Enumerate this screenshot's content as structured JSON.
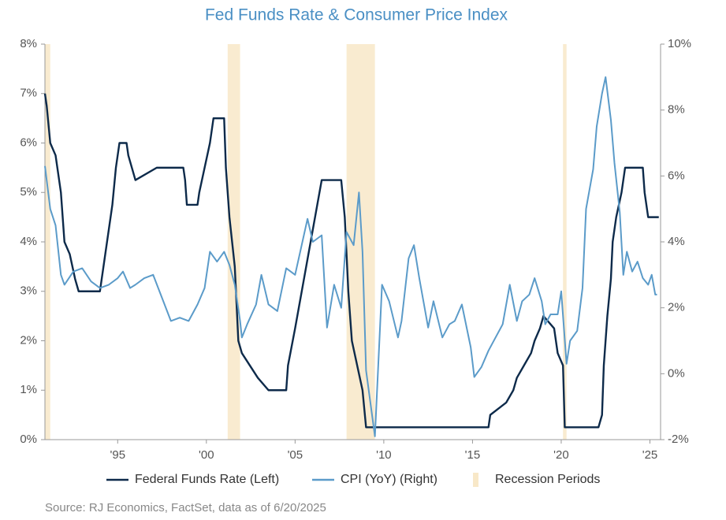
{
  "chart_data": {
    "type": "line",
    "title": "Fed Funds Rate & Consumer Price Index",
    "source": "Source: RJ Economics, FactSet, data as of 6/20/2025",
    "xlim": [
      1990.9,
      2025.6
    ],
    "xticks": [
      {
        "value": 1995,
        "label": "'95"
      },
      {
        "value": 2000,
        "label": "'00"
      },
      {
        "value": 2005,
        "label": "'05"
      },
      {
        "value": 2010,
        "label": "'10"
      },
      {
        "value": 2015,
        "label": "'15"
      },
      {
        "value": 2020,
        "label": "'20"
      },
      {
        "value": 2025,
        "label": "'25"
      }
    ],
    "ylim": [
      0,
      8
    ],
    "yticks": [
      {
        "value": 0,
        "label": "0%"
      },
      {
        "value": 1,
        "label": "1%"
      },
      {
        "value": 2,
        "label": "2%"
      },
      {
        "value": 3,
        "label": "3%"
      },
      {
        "value": 4,
        "label": "4%"
      },
      {
        "value": 5,
        "label": "5%"
      },
      {
        "value": 6,
        "label": "6%"
      },
      {
        "value": 7,
        "label": "7%"
      },
      {
        "value": 8,
        "label": "8%"
      }
    ],
    "y2lim": [
      -2,
      10
    ],
    "y2ticks": [
      {
        "value": -2,
        "label": "-2%"
      },
      {
        "value": 0,
        "label": "0%"
      },
      {
        "value": 2,
        "label": "2%"
      },
      {
        "value": 4,
        "label": "4%"
      },
      {
        "value": 6,
        "label": "6%"
      },
      {
        "value": 8,
        "label": "8%"
      },
      {
        "value": 10,
        "label": "10%"
      }
    ],
    "recessions": {
      "name": "Recession Periods",
      "color": "#f8e8c8",
      "periods": [
        [
          1990.9,
          1991.2
        ],
        [
          2001.2,
          2001.9
        ],
        [
          2007.9,
          2009.5
        ],
        [
          2020.1,
          2020.3
        ]
      ]
    },
    "series": [
      {
        "name": "Federal Funds Rate (Left)",
        "color": "#0d2a4a",
        "axis": "y",
        "x": [
          1990.9,
          1991.0,
          1991.2,
          1991.5,
          1991.8,
          1992.0,
          1992.3,
          1992.6,
          1992.8,
          1994.0,
          1994.1,
          1994.3,
          1994.5,
          1994.7,
          1994.9,
          1995.1,
          1995.5,
          1995.6,
          1996.0,
          1997.2,
          1998.7,
          1998.8,
          1998.9,
          1999.5,
          1999.6,
          1999.9,
          2000.2,
          2000.4,
          2001.0,
          2001.1,
          2001.3,
          2001.6,
          2001.8,
          2002.0,
          2002.9,
          2003.5,
          2004.5,
          2004.6,
          2005.0,
          2005.5,
          2006.0,
          2006.5,
          2007.6,
          2007.8,
          2008.0,
          2008.2,
          2008.8,
          2009.0,
          2015.9,
          2016.0,
          2016.9,
          2017.3,
          2017.5,
          2017.9,
          2018.3,
          2018.5,
          2018.8,
          2019.0,
          2019.6,
          2019.8,
          2020.1,
          2020.2,
          2022.1,
          2022.3,
          2022.4,
          2022.6,
          2022.8,
          2022.9,
          2023.1,
          2023.4,
          2023.6,
          2024.6,
          2024.7,
          2024.9,
          2025.5
        ],
        "values": [
          7.0,
          6.75,
          6.0,
          5.75,
          5.0,
          4.0,
          3.75,
          3.25,
          3.0,
          3.0,
          3.25,
          3.75,
          4.25,
          4.75,
          5.5,
          6.0,
          6.0,
          5.75,
          5.25,
          5.5,
          5.5,
          5.25,
          4.75,
          4.75,
          5.0,
          5.5,
          6.0,
          6.5,
          6.5,
          5.5,
          4.5,
          3.5,
          2.0,
          1.75,
          1.25,
          1.0,
          1.0,
          1.5,
          2.25,
          3.25,
          4.25,
          5.25,
          5.25,
          4.5,
          3.0,
          2.0,
          1.0,
          0.25,
          0.25,
          0.5,
          0.75,
          1.0,
          1.25,
          1.5,
          1.75,
          2.0,
          2.25,
          2.5,
          2.25,
          1.75,
          1.5,
          0.25,
          0.25,
          0.5,
          1.5,
          2.5,
          3.25,
          4.0,
          4.5,
          5.0,
          5.5,
          5.5,
          5.0,
          4.5,
          4.5
        ]
      },
      {
        "name": "CPI (YoY) (Right)",
        "color": "#5b9bc9",
        "axis": "y2",
        "x": [
          1990.9,
          1991.2,
          1991.5,
          1991.8,
          1992.0,
          1992.5,
          1993.0,
          1993.5,
          1994.0,
          1994.5,
          1995.0,
          1995.3,
          1995.7,
          1996.0,
          1996.5,
          1997.0,
          1997.5,
          1998.0,
          1998.5,
          1999.0,
          1999.5,
          1999.9,
          2000.2,
          2000.6,
          2001.0,
          2001.3,
          2001.6,
          2001.9,
          2002.0,
          2002.3,
          2002.8,
          2003.1,
          2003.5,
          2004.0,
          2004.5,
          2005.0,
          2005.7,
          2006.0,
          2006.5,
          2006.8,
          2007.2,
          2007.6,
          2007.9,
          2008.3,
          2008.6,
          2008.8,
          2009.0,
          2009.5,
          2009.9,
          2010.3,
          2010.8,
          2011.0,
          2011.4,
          2011.7,
          2012.0,
          2012.5,
          2012.8,
          2013.3,
          2013.7,
          2014.0,
          2014.4,
          2014.9,
          2015.1,
          2015.5,
          2015.9,
          2016.3,
          2016.7,
          2017.1,
          2017.5,
          2017.8,
          2018.2,
          2018.5,
          2018.9,
          2019.1,
          2019.4,
          2019.8,
          2020.0,
          2020.3,
          2020.5,
          2020.9,
          2021.2,
          2021.4,
          2021.8,
          2022.0,
          2022.3,
          2022.5,
          2022.8,
          2023.0,
          2023.3,
          2023.5,
          2023.7,
          2024.0,
          2024.3,
          2024.6,
          2024.9,
          2025.1,
          2025.3,
          2025.4
        ],
        "values": [
          6.3,
          5.0,
          4.5,
          3.0,
          2.7,
          3.1,
          3.2,
          2.8,
          2.6,
          2.7,
          2.9,
          3.1,
          2.6,
          2.7,
          2.9,
          3.0,
          2.3,
          1.6,
          1.7,
          1.6,
          2.1,
          2.6,
          3.7,
          3.4,
          3.7,
          3.3,
          2.7,
          1.6,
          1.1,
          1.5,
          2.1,
          3.0,
          2.1,
          1.9,
          3.2,
          3.0,
          4.7,
          4.0,
          4.2,
          1.4,
          2.7,
          2.0,
          4.3,
          3.9,
          5.5,
          3.7,
          0.1,
          -1.9,
          2.7,
          2.2,
          1.1,
          1.6,
          3.5,
          3.9,
          2.9,
          1.4,
          2.2,
          1.1,
          1.5,
          1.6,
          2.1,
          0.8,
          -0.1,
          0.2,
          0.7,
          1.1,
          1.5,
          2.7,
          1.6,
          2.2,
          2.4,
          2.9,
          2.2,
          1.5,
          1.8,
          1.8,
          2.5,
          0.3,
          1.0,
          1.3,
          2.6,
          5.0,
          6.2,
          7.5,
          8.5,
          9.0,
          7.7,
          6.4,
          4.9,
          3.0,
          3.7,
          3.1,
          3.4,
          2.9,
          2.7,
          3.0,
          2.4,
          2.4
        ]
      }
    ]
  }
}
